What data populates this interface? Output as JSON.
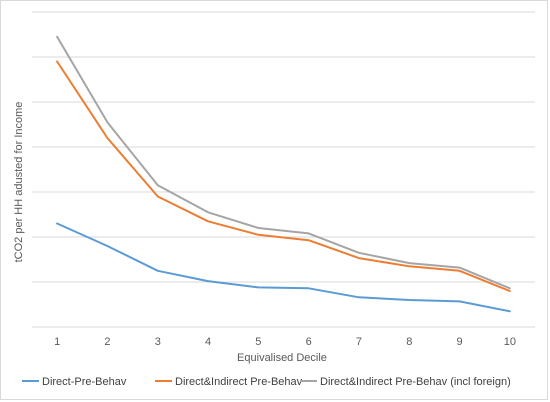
{
  "chart_data": {
    "type": "line",
    "title": "",
    "xlabel": "Equivalised Decile",
    "ylabel": "tCO2 per HH adusted for Income",
    "categories": [
      "1",
      "2",
      "3",
      "4",
      "5",
      "6",
      "7",
      "8",
      "9",
      "10"
    ],
    "ylim": [
      0,
      7
    ],
    "y_ticks": [
      0,
      1,
      2,
      3,
      4,
      5,
      6,
      7
    ],
    "grid": true,
    "show_y_tick_labels": false,
    "legend_position": "bottom",
    "series": [
      {
        "name": "Direct-Pre-Behav",
        "color": "#5b9bd5",
        "values": [
          2.3,
          1.8,
          1.25,
          1.02,
          0.88,
          0.86,
          0.66,
          0.6,
          0.57,
          0.35
        ]
      },
      {
        "name": "Direct&Indirect Pre-Behav",
        "color": "#ed7d31",
        "values": [
          5.9,
          4.2,
          2.9,
          2.35,
          2.05,
          1.93,
          1.53,
          1.35,
          1.25,
          0.8
        ]
      },
      {
        "name": "Direct&Indirect Pre-Behav (incl foreign)",
        "color": "#a5a5a5",
        "values": [
          6.45,
          4.55,
          3.15,
          2.55,
          2.2,
          2.08,
          1.65,
          1.42,
          1.32,
          0.86
        ]
      }
    ]
  }
}
